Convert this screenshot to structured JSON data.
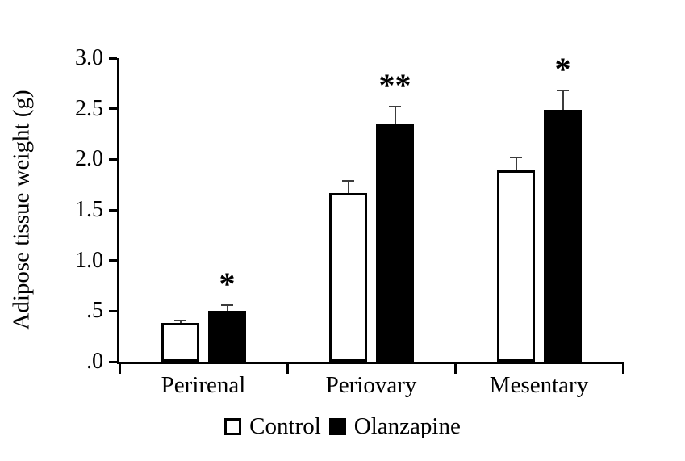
{
  "chart_data": {
    "type": "bar",
    "title": "",
    "xlabel": "",
    "ylabel": "Adipose tissue weight (g)",
    "ylim": [
      0,
      3.0
    ],
    "ytick_values": [
      3.0,
      2.5,
      2.0,
      1.5,
      1.0,
      0.5,
      0.0
    ],
    "ytick_labels": [
      "3.0",
      "2.5",
      "2.0",
      "1.5",
      "1.0",
      ".5",
      ".0"
    ],
    "categories": [
      "Perirenal",
      "Periovary",
      "Mesentary"
    ],
    "series": [
      {
        "name": "Control",
        "fill": "#ffffff",
        "values": [
          0.38,
          1.67,
          1.89
        ],
        "errors": [
          0.03,
          0.12,
          0.13
        ]
      },
      {
        "name": "Olanzapine",
        "fill": "#000000",
        "values": [
          0.5,
          2.35,
          2.49
        ],
        "errors": [
          0.06,
          0.17,
          0.19
        ]
      }
    ],
    "significance_markers": [
      "*",
      "**",
      "*"
    ],
    "significance_on_series": "Olanzapine",
    "legend_position": "bottom",
    "grid": "off",
    "colors": {
      "axis": "#000000",
      "error_bar": "#3c3c3c",
      "background": "#ffffff"
    }
  }
}
